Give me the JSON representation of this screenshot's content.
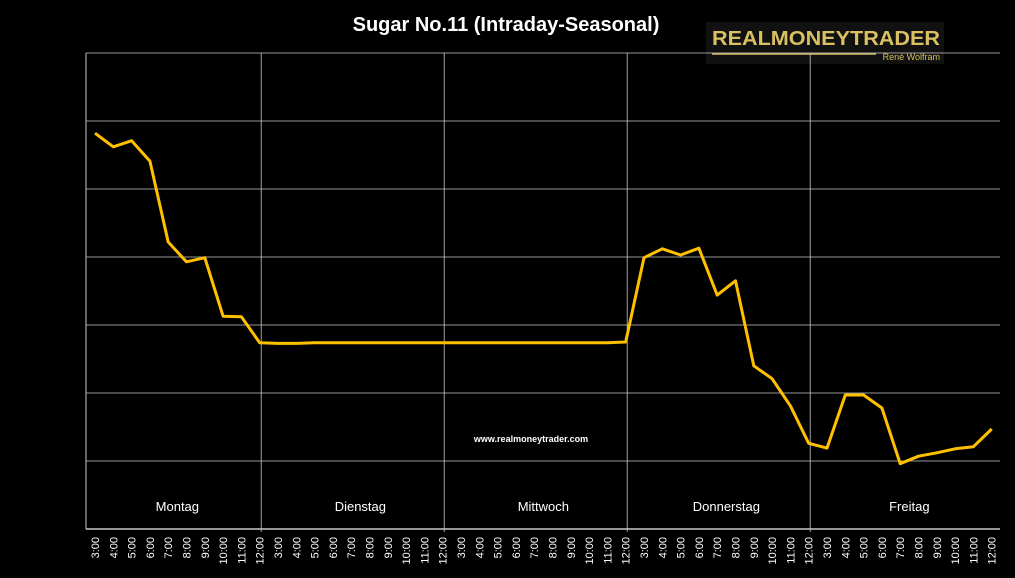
{
  "chart_data": {
    "type": "line",
    "title": "Sugar No.11 (Intraday-Seasonal)",
    "xlabel": "",
    "ylabel": "",
    "ylim": [
      0,
      7
    ],
    "grid": true,
    "days": [
      "Montag",
      "Dienstag",
      "Mittwoch",
      "Donnerstag",
      "Freitag"
    ],
    "hours": [
      "3:00",
      "4:00",
      "5:00",
      "6:00",
      "7:00",
      "8:00",
      "9:00",
      "10:00",
      "11:00",
      "12:00"
    ],
    "series": [
      {
        "name": "Sugar No.11",
        "color": "#ffc000",
        "values": [
          5.82,
          5.62,
          5.71,
          5.41,
          4.22,
          3.93,
          3.99,
          3.13,
          3.12,
          2.74,
          2.73,
          2.73,
          2.74,
          2.74,
          2.74,
          2.74,
          2.74,
          2.74,
          2.74,
          2.74,
          2.74,
          2.74,
          2.74,
          2.74,
          2.74,
          2.74,
          2.74,
          2.74,
          2.74,
          2.75,
          3.99,
          4.12,
          4.03,
          4.13,
          3.44,
          3.65,
          2.4,
          2.21,
          1.81,
          1.26,
          1.19,
          1.97,
          1.97,
          1.78,
          0.96,
          1.07,
          1.12,
          1.18,
          1.21,
          1.47
        ]
      }
    ]
  },
  "watermark": "www.realmoneytrader.com",
  "logo": {
    "name": "REALMONEYTRADER",
    "author": "René Wolfram"
  }
}
